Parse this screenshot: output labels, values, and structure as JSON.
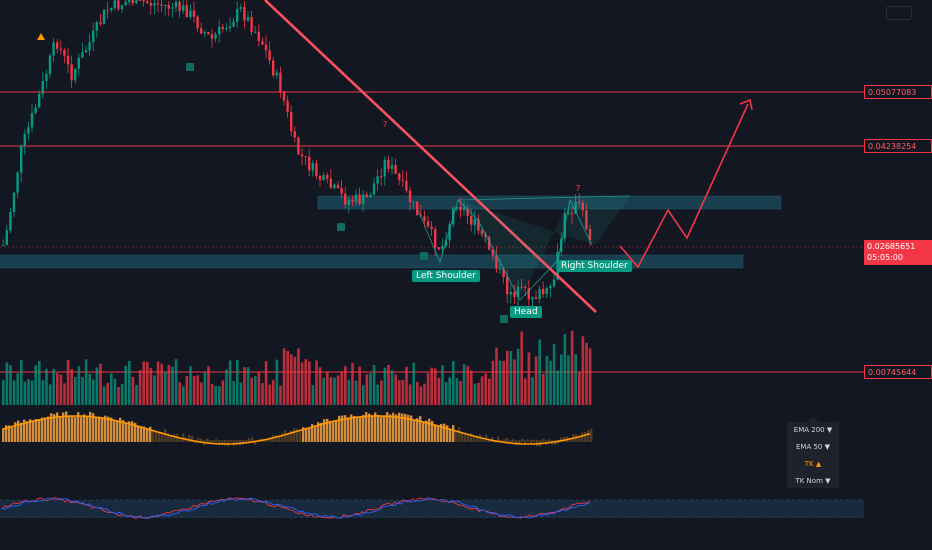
{
  "chart_data": {
    "type": "candlestick",
    "price_levels": [
      {
        "price": "0.05077083",
        "color": "#f23645",
        "style": "solid"
      },
      {
        "price": "0.04238254",
        "color": "#f23645",
        "style": "solid"
      },
      {
        "price": "0.00745644",
        "color": "#f23645",
        "style": "solid"
      }
    ],
    "current_price": {
      "price": "0.02685651",
      "countdown": "05:05:00"
    },
    "pattern_labels": [
      "Left Shoulder",
      "Head",
      "Right Shoulder"
    ],
    "signal_digits": [
      "7",
      "7"
    ],
    "indicator_menu": [
      {
        "label": "EMA 200 ▼",
        "active": false
      },
      {
        "label": "EMA 50 ▼",
        "active": false
      },
      {
        "label": "TK ▲",
        "active": true
      },
      {
        "label": "TK Nom ▼",
        "active": false
      }
    ],
    "colors": {
      "up": "#089981",
      "down": "#f23645",
      "background": "#131722",
      "trendline": "#f7525f",
      "projection": "#f23645",
      "zone": "#1e5f74",
      "oscillator": "#ff9800"
    }
  }
}
